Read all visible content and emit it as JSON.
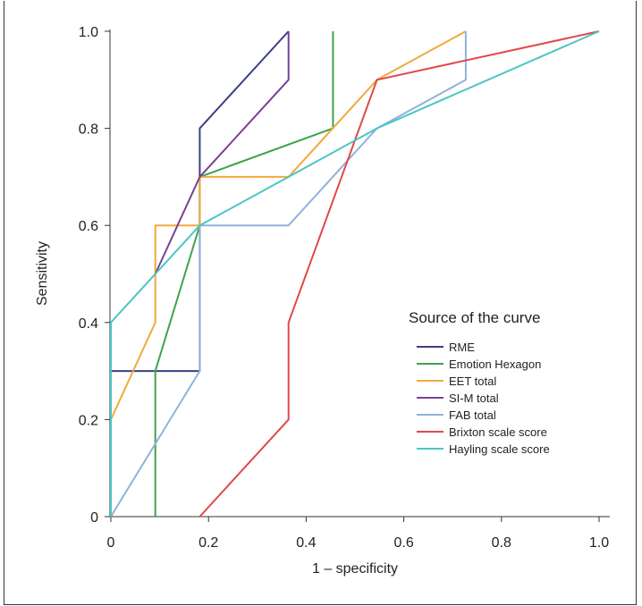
{
  "chart_data": {
    "type": "line",
    "title": "",
    "xlabel": "1 – specificity",
    "ylabel": "Sensitivity",
    "xlim": [
      0,
      1.0
    ],
    "ylim": [
      0,
      1.0
    ],
    "xticks": [
      "0",
      "0.2",
      "0.4",
      "0.6",
      "0.8",
      "1.0"
    ],
    "yticks": [
      "0",
      "0.2",
      "0.4",
      "0.6",
      "0.8",
      "1.0"
    ],
    "grid": false,
    "legend_title": "Source of the curve",
    "legend_placement": "center-right",
    "series": [
      {
        "name": "RME",
        "color": "#3b3f86",
        "x": [
          0,
          0,
          0.182,
          0.182,
          0.364,
          0.364
        ],
        "y": [
          0,
          0.3,
          0.3,
          0.8,
          1.0,
          1.0
        ]
      },
      {
        "name": "Emotion Hexagon",
        "color": "#3fa34d",
        "x": [
          0.091,
          0.091,
          0.182,
          0.182,
          0.455,
          0.455
        ],
        "y": [
          0,
          0.3,
          0.6,
          0.7,
          0.8,
          1.0
        ]
      },
      {
        "name": "EET total",
        "color": "#f2a93b",
        "x": [
          0,
          0.091,
          0.091,
          0.182,
          0.182,
          0.364,
          0.545,
          0.727
        ],
        "y": [
          0.2,
          0.4,
          0.6,
          0.6,
          0.7,
          0.7,
          0.9,
          1.0
        ]
      },
      {
        "name": "SI-M total",
        "color": "#7b3f98",
        "x": [
          0.091,
          0.182,
          0.364,
          0.364
        ],
        "y": [
          0.5,
          0.7,
          0.9,
          1.0
        ]
      },
      {
        "name": "FAB total",
        "color": "#8fb3dc",
        "x": [
          0,
          0.182,
          0.182,
          0.364,
          0.545,
          0.727,
          0.727
        ],
        "y": [
          0,
          0.3,
          0.6,
          0.6,
          0.8,
          0.9,
          1.0
        ]
      },
      {
        "name": "Brixton scale score",
        "color": "#e0474c",
        "x": [
          0.182,
          0.364,
          0.364,
          0.545,
          1.0
        ],
        "y": [
          0,
          0.2,
          0.4,
          0.9,
          1.0
        ]
      },
      {
        "name": "Hayling scale score",
        "color": "#4cc5c5",
        "x": [
          0,
          0,
          0.182,
          0.364,
          0.545,
          1.0
        ],
        "y": [
          0,
          0.4,
          0.6,
          0.7,
          0.8,
          1.0
        ]
      }
    ]
  }
}
